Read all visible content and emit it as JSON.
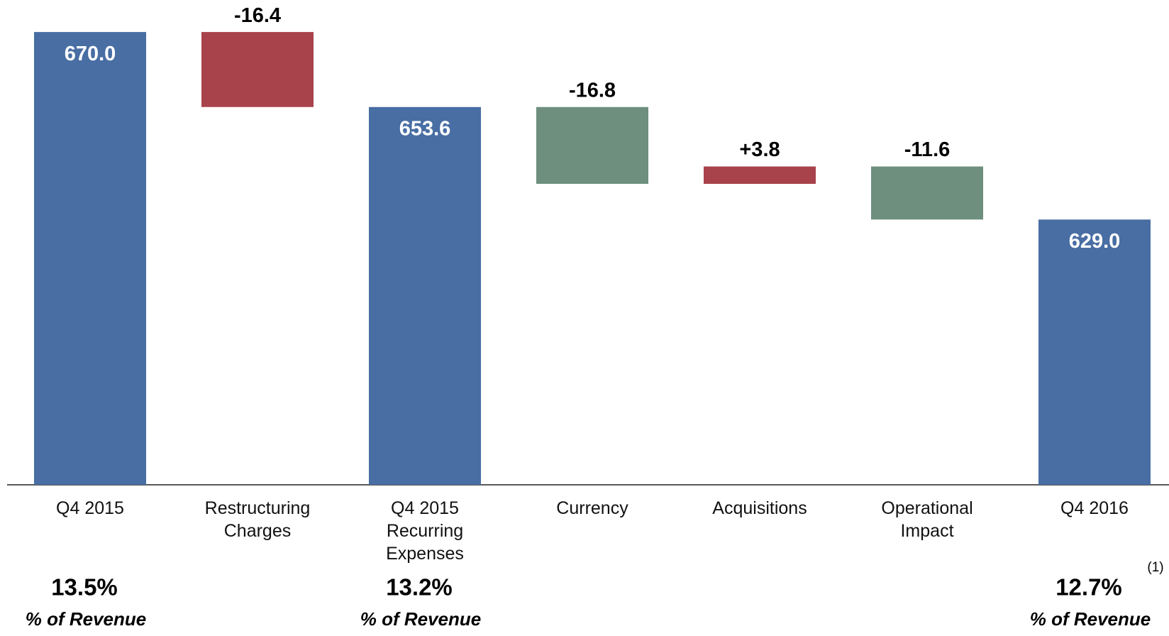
{
  "chart_data": {
    "type": "waterfall",
    "categories": [
      "Q4 2015",
      "Restructuring\nCharges",
      "Q4 2015\nRecurring\nExpenses",
      "Currency",
      "Acquisitions",
      "Operational\nImpact",
      "Q4 2016"
    ],
    "values": [
      670.0,
      -16.4,
      653.6,
      -16.8,
      3.8,
      -11.6,
      629.0
    ],
    "value_labels": [
      "670.0",
      "-16.4",
      "653.6",
      "-16.8",
      "+3.8",
      "-11.6",
      "629.0"
    ],
    "totals": [
      true,
      false,
      true,
      false,
      false,
      false,
      true
    ],
    "colors": [
      "#486ea3",
      "#a8424b",
      "#486ea3",
      "#6e8f7e",
      "#a8424b",
      "#6e8f7e",
      "#486ea3"
    ],
    "ylim": [
      571,
      677
    ],
    "revenue_pct": [
      "13.5%",
      null,
      "13.2%",
      null,
      null,
      null,
      "12.7%"
    ],
    "revenue_note": "% of Revenue",
    "footnote": "(1)"
  }
}
